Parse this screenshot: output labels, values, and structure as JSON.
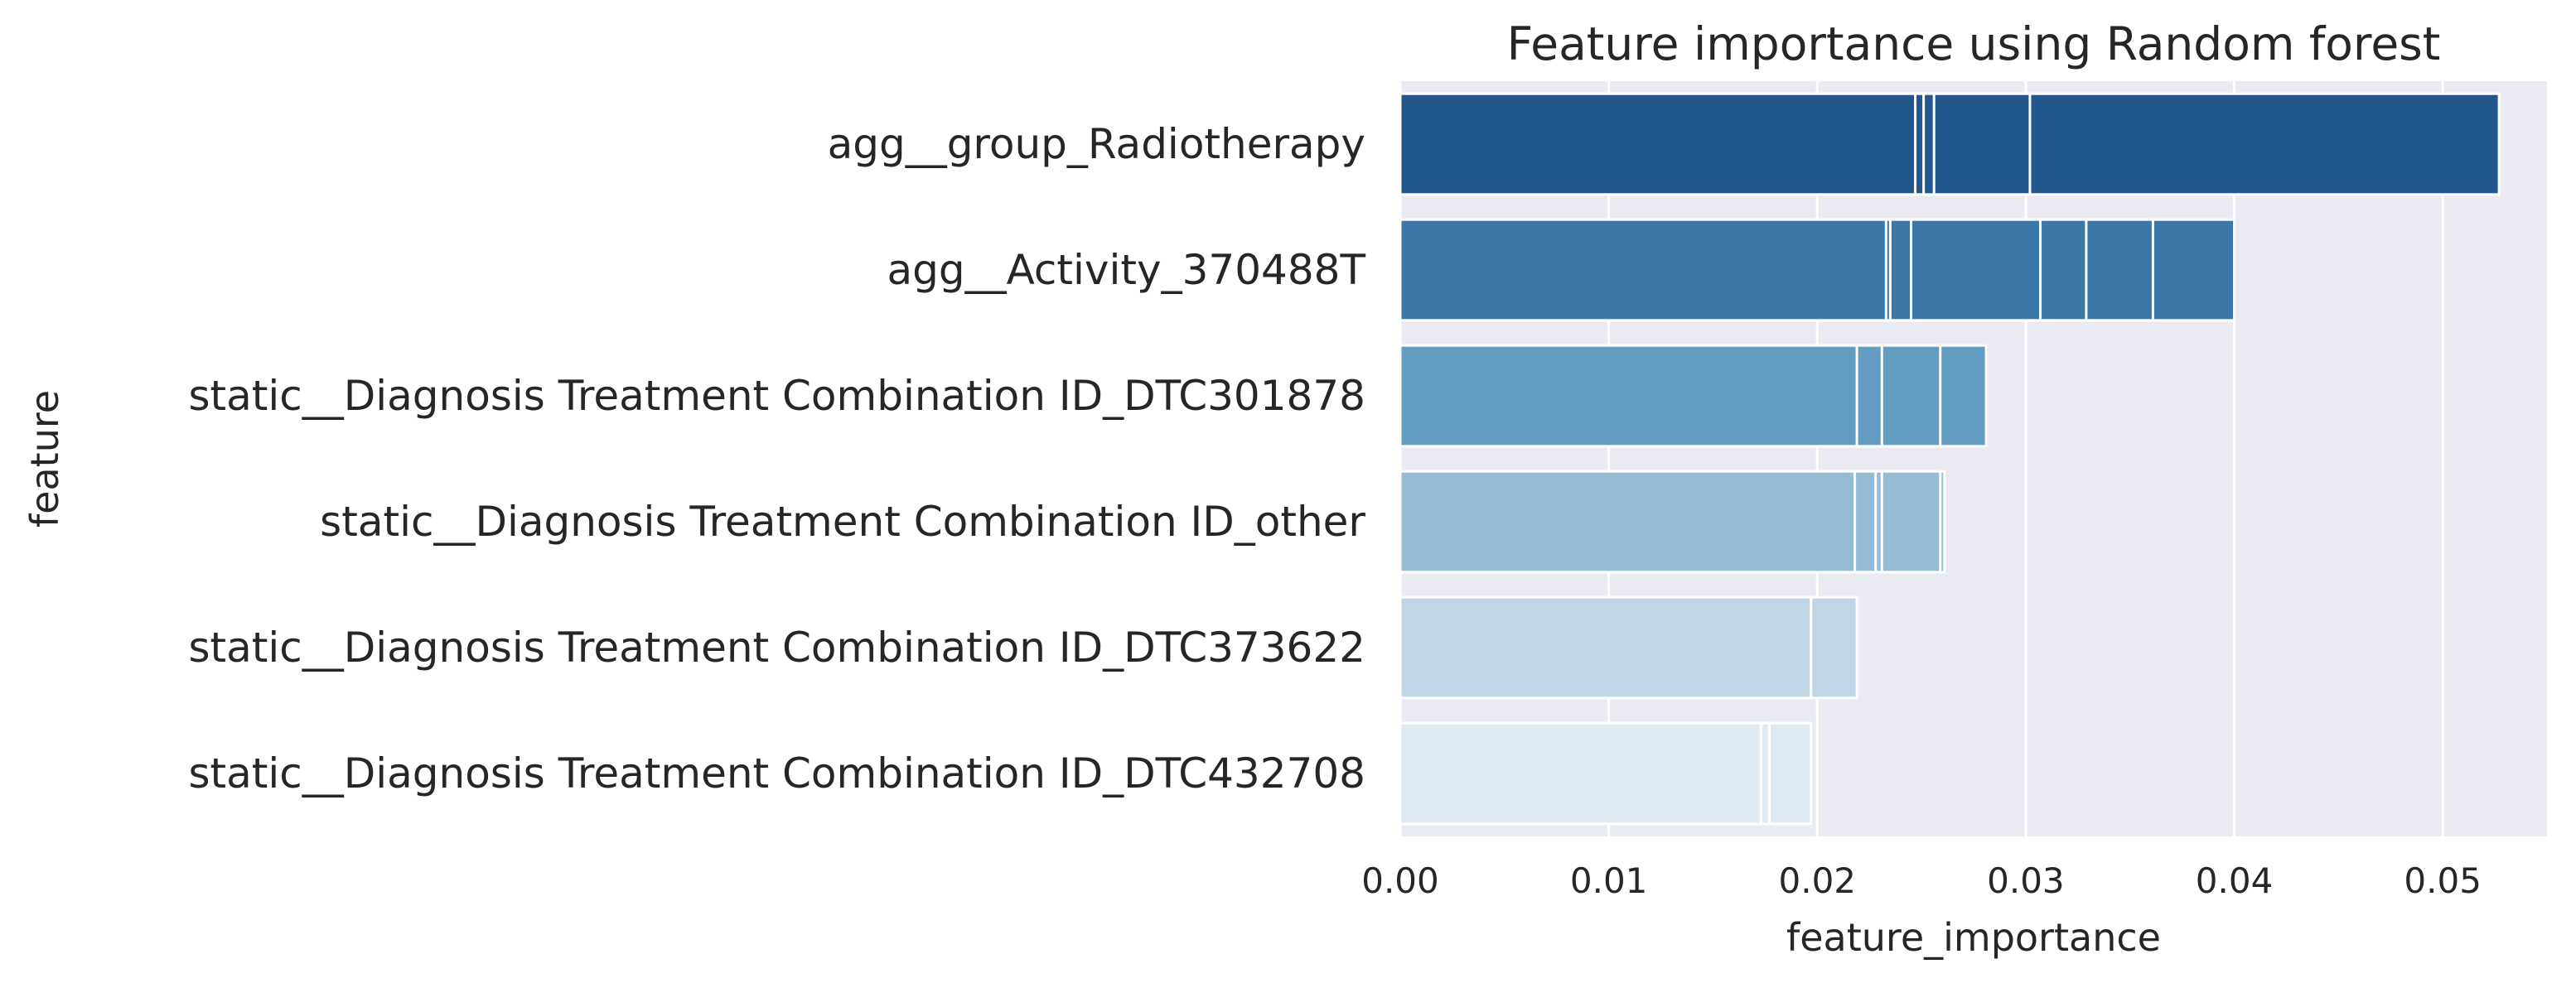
{
  "chart_data": {
    "type": "bar",
    "orientation": "horizontal",
    "title": "Feature importance using Random forest",
    "xlabel": "feature_importance",
    "ylabel": "feature",
    "xlim": [
      0,
      0.055
    ],
    "xticks": [
      0.0,
      0.01,
      0.02,
      0.03,
      0.04,
      0.05
    ],
    "xtick_labels": [
      "0.00",
      "0.01",
      "0.02",
      "0.03",
      "0.04",
      "0.05"
    ],
    "grid": true,
    "categories": [
      "agg__group_Radiotherapy",
      "agg__Activity_370488T",
      "static__Diagnosis Treatment Combination ID_DTC301878",
      "static__Diagnosis Treatment Combination ID_other",
      "static__Diagnosis Treatment Combination ID_DTC373622",
      "static__Diagnosis Treatment Combination ID_DTC432708"
    ],
    "colors": [
      "#21578c",
      "#3b78aa",
      "#639cc1",
      "#94bcd4",
      "#c0d5e6",
      "#dfe9f2"
    ],
    "values": [
      0.0527,
      0.04,
      0.0281,
      0.0261,
      0.0219,
      0.0197
    ],
    "overlapping_values": [
      [
        0.0527,
        0.0302,
        0.0256,
        0.0251,
        0.0247
      ],
      [
        0.04,
        0.0361,
        0.0329,
        0.0307,
        0.0245,
        0.0235,
        0.0233
      ],
      [
        0.0281,
        0.0259,
        0.0231,
        0.0219
      ],
      [
        0.0261,
        0.0259,
        0.0231,
        0.0228,
        0.0218
      ],
      [
        0.0219,
        0.0197
      ],
      [
        0.0197,
        0.0177,
        0.0173
      ]
    ]
  }
}
